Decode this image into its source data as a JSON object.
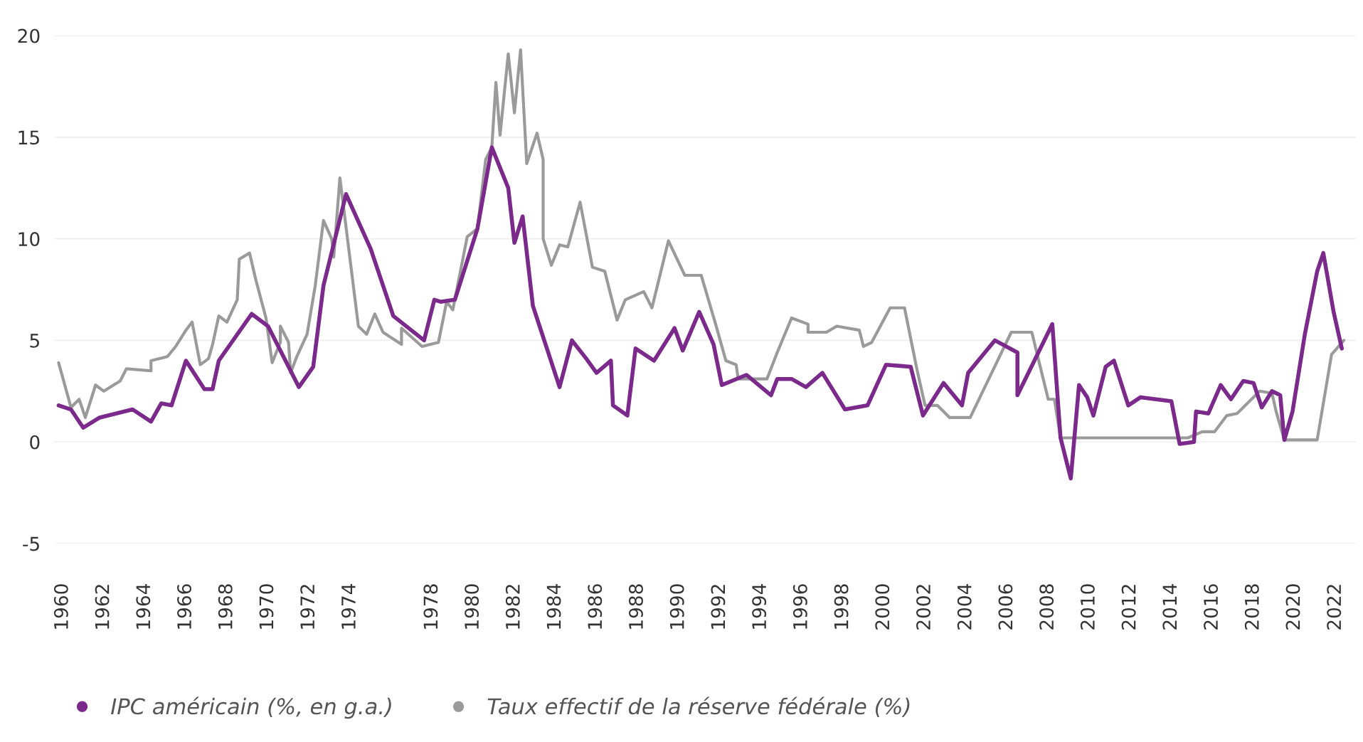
{
  "chart_data": {
    "type": "line",
    "xlim": [
      1959.6,
      2023.0
    ],
    "ylim": [
      -5,
      20
    ],
    "xticks": [
      1960,
      1962,
      1964,
      1966,
      1968,
      1970,
      1972,
      1974,
      1978,
      1980,
      1982,
      1984,
      1986,
      1988,
      1990,
      1992,
      1994,
      1996,
      1998,
      2000,
      2002,
      2004,
      2006,
      2008,
      2010,
      2012,
      2014,
      2016,
      2018,
      2020,
      2022
    ],
    "yticks": [
      -5,
      0,
      5,
      10,
      15,
      20
    ],
    "grid": "y",
    "legend": "bottom left",
    "marker": "none",
    "line_style": "solid",
    "series": [
      {
        "name": "Taux effectif de la réserve fédérale (%)",
        "color": "#9a9a9a",
        "x": [
          1959.8,
          1960.4,
          1960.8,
          1961.1,
          1961.6,
          1962.0,
          1962.8,
          1963.1,
          1964.3,
          1964.3,
          1965.1,
          1965.5,
          1966.0,
          1966.3,
          1966.7,
          1967.1,
          1967.3,
          1967.6,
          1968.0,
          1968.5,
          1968.6,
          1969.1,
          1969.4,
          1969.9,
          1970.2,
          1970.6,
          1970.6,
          1971.0,
          1971.1,
          1971.4,
          1971.9,
          1972.3,
          1972.7,
          1973.1,
          1973.2,
          1973.5,
          1974.4,
          1974.8,
          1975.2,
          1975.6,
          1976.5,
          1976.5,
          1977.5,
          1978.3,
          1978.7,
          1979.0,
          1979.7,
          1980.2,
          1980.6,
          1980.9,
          1981.1,
          1981.3,
          1981.7,
          1982.0,
          1982.3,
          1982.6,
          1983.1,
          1983.4,
          1983.4,
          1983.8,
          1984.2,
          1984.6,
          1985.2,
          1985.8,
          1986.4,
          1987.0,
          1987.4,
          1988.3,
          1988.7,
          1989.5,
          1990.3,
          1991.1,
          1991.8,
          1992.3,
          1992.8,
          1992.9,
          1994.3,
          1994.8,
          1995.5,
          1996.3,
          1996.3,
          1997.2,
          1997.7,
          1998.8,
          1999.0,
          1999.4,
          2000.3,
          2001.0,
          2001.6,
          2002.0,
          2002.6,
          2003.2,
          2004.2,
          2006.2,
          2007.2,
          2008.0,
          2008.3,
          2008.6,
          2014.8,
          2015.5,
          2016.1,
          2016.7,
          2017.2,
          2018.3,
          2018.9,
          2019.1,
          2019.5,
          2021.1,
          2021.8,
          2022.4
        ],
        "values": [
          3.9,
          1.7,
          2.1,
          1.2,
          2.8,
          2.5,
          3.0,
          3.6,
          3.5,
          4.0,
          4.2,
          4.7,
          5.5,
          5.9,
          3.8,
          4.1,
          4.8,
          6.2,
          5.9,
          7.0,
          9.0,
          9.3,
          8.0,
          6.1,
          3.9,
          4.9,
          5.7,
          4.9,
          3.4,
          4.2,
          5.3,
          7.7,
          10.9,
          10.0,
          9.1,
          13.0,
          5.7,
          5.3,
          6.3,
          5.4,
          4.8,
          5.6,
          4.7,
          4.9,
          6.9,
          6.5,
          10.1,
          10.5,
          13.9,
          14.5,
          17.7,
          15.1,
          19.1,
          16.2,
          19.3,
          13.7,
          15.2,
          13.9,
          10.0,
          8.7,
          9.7,
          9.6,
          11.8,
          8.6,
          8.4,
          6.0,
          7.0,
          7.4,
          6.6,
          9.9,
          8.2,
          8.2,
          5.8,
          4.0,
          3.8,
          3.1,
          3.1,
          4.4,
          6.1,
          5.8,
          5.4,
          5.4,
          5.7,
          5.5,
          4.7,
          4.9,
          6.6,
          6.6,
          3.6,
          1.8,
          1.8,
          1.2,
          1.2,
          5.4,
          5.4,
          2.1,
          2.1,
          0.2,
          0.2,
          0.5,
          0.5,
          1.3,
          1.4,
          2.5,
          2.4,
          1.5,
          0.1,
          0.1,
          4.3,
          5.0
        ]
      },
      {
        "name": "IPC américain (%, en g.a.)",
        "color": "#7b2a8c",
        "x": [
          1959.8,
          1960.4,
          1961.0,
          1961.8,
          1963.4,
          1964.3,
          1964.8,
          1965.3,
          1966.0,
          1966.9,
          1967.3,
          1967.6,
          1969.2,
          1970.0,
          1971.5,
          1972.2,
          1972.7,
          1973.8,
          1975.0,
          1976.1,
          1977.6,
          1978.1,
          1978.4,
          1979.1,
          1980.2,
          1980.9,
          1981.7,
          1982.0,
          1982.4,
          1982.9,
          1984.2,
          1984.8,
          1985.5,
          1986.0,
          1986.7,
          1986.8,
          1987.5,
          1987.9,
          1988.8,
          1989.8,
          1990.2,
          1991.0,
          1991.7,
          1992.1,
          1993.3,
          1994.5,
          1994.8,
          1995.5,
          1996.2,
          1997.0,
          1998.1,
          1999.2,
          2000.1,
          2001.3,
          2001.9,
          2002.9,
          2003.8,
          2004.1,
          2005.4,
          2006.5,
          2006.5,
          2008.2,
          2008.6,
          2009.1,
          2009.5,
          2009.9,
          2010.2,
          2010.8,
          2011.2,
          2011.9,
          2012.5,
          2014.0,
          2014.4,
          2015.1,
          2015.2,
          2015.8,
          2016.4,
          2016.9,
          2017.5,
          2018.0,
          2018.4,
          2018.9,
          2019.3,
          2019.5,
          2019.9,
          2020.5,
          2021.1,
          2021.4,
          2021.9,
          2022.3
        ],
        "values": [
          1.8,
          1.6,
          0.7,
          1.2,
          1.6,
          1.0,
          1.9,
          1.8,
          4.0,
          2.6,
          2.6,
          4.0,
          6.3,
          5.7,
          2.7,
          3.7,
          7.7,
          12.2,
          9.5,
          6.2,
          5.0,
          7.0,
          6.9,
          7.0,
          10.5,
          14.5,
          12.5,
          9.8,
          11.1,
          6.7,
          2.7,
          5.0,
          4.1,
          3.4,
          4.0,
          1.8,
          1.3,
          4.6,
          4.0,
          5.6,
          4.5,
          6.4,
          4.8,
          2.8,
          3.3,
          2.3,
          3.1,
          3.1,
          2.7,
          3.4,
          1.6,
          1.8,
          3.8,
          3.7,
          1.3,
          2.9,
          1.8,
          3.4,
          5.0,
          4.4,
          2.3,
          5.8,
          0.2,
          -1.8,
          2.8,
          2.2,
          1.3,
          3.7,
          4.0,
          1.8,
          2.2,
          2.0,
          -0.1,
          0.0,
          1.5,
          1.4,
          2.8,
          2.1,
          3.0,
          2.9,
          1.7,
          2.5,
          2.3,
          0.1,
          1.5,
          5.3,
          8.4,
          9.3,
          6.4,
          4.6
        ]
      }
    ]
  }
}
